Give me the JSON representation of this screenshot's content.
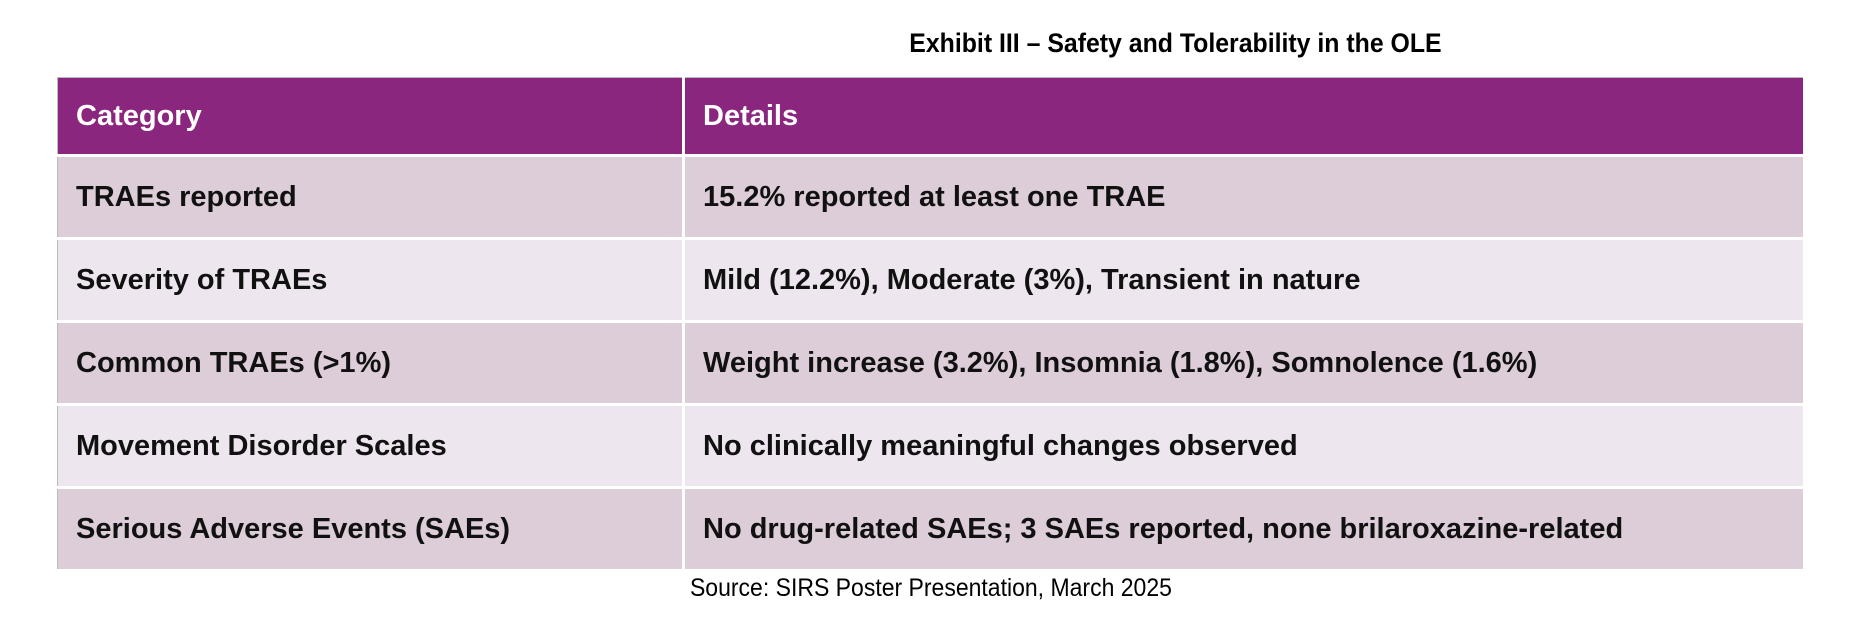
{
  "title": "Exhibit III – Safety and Tolerability in the OLE",
  "table": {
    "headers": [
      "Category",
      "Details"
    ],
    "rows": [
      {
        "category": "TRAEs reported",
        "details": "15.2% reported at least one TRAE"
      },
      {
        "category": "Severity of TRAEs",
        "details": "Mild (12.2%), Moderate (3%), Transient in nature"
      },
      {
        "category": "Common TRAEs (>1%)",
        "details": "Weight increase (3.2%), Insomnia (1.8%), Somnolence (1.6%)"
      },
      {
        "category": "Movement Disorder Scales",
        "details": "No clinically meaningful changes observed"
      },
      {
        "category": "Serious Adverse Events (SAEs)",
        "details": "No drug-related SAEs; 3 SAEs reported, none brilaroxazine-related"
      }
    ]
  },
  "source": "Source: SIRS Poster Presentation, March 2025",
  "colors": {
    "header": "#8B267E",
    "row_odd": "#DCCDD8",
    "row_even": "#EEE6EE"
  }
}
